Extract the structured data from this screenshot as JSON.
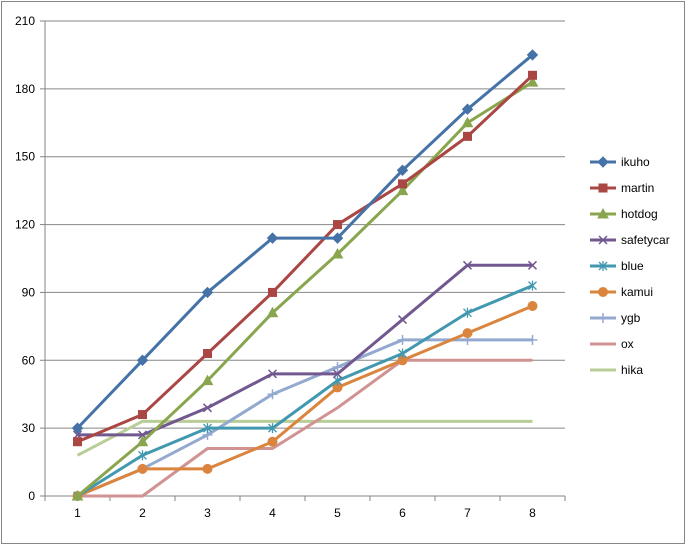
{
  "chart_data": {
    "type": "line",
    "title": "",
    "xlabel": "",
    "ylabel": "",
    "x": [
      1,
      2,
      3,
      4,
      5,
      6,
      7,
      8
    ],
    "ylim": [
      0,
      210
    ],
    "yticks": [
      0,
      30,
      60,
      90,
      120,
      150,
      180,
      210
    ],
    "grid": "horizontal",
    "legend": "right",
    "series": [
      {
        "name": "ikuho",
        "color": "#4572A7",
        "marker": "diamond",
        "values": [
          30,
          60,
          90,
          114,
          114,
          144,
          171,
          195
        ]
      },
      {
        "name": "martin",
        "color": "#AA4643",
        "marker": "square",
        "values": [
          24,
          36,
          63,
          90,
          120,
          138,
          159,
          186
        ]
      },
      {
        "name": "hotdog",
        "color": "#89A54E",
        "marker": "triangle",
        "values": [
          0,
          24,
          51,
          81,
          107,
          135,
          165,
          183
        ]
      },
      {
        "name": "safetycar",
        "color": "#71588F",
        "marker": "x",
        "values": [
          27,
          27,
          39,
          54,
          54,
          78,
          102,
          102
        ]
      },
      {
        "name": "blue",
        "color": "#4198AF",
        "marker": "asterisk",
        "values": [
          0,
          18,
          30,
          30,
          51,
          63,
          81,
          93
        ]
      },
      {
        "name": "kamui",
        "color": "#DB843D",
        "marker": "circle",
        "values": [
          0,
          12,
          12,
          24,
          48,
          60,
          72,
          84
        ]
      },
      {
        "name": "ygb",
        "color": "#93A9CF",
        "marker": "plus",
        "values": [
          0,
          12,
          27,
          45,
          57,
          69,
          69,
          69
        ]
      },
      {
        "name": "ox",
        "color": "#D19392",
        "marker": "none",
        "values": [
          0,
          0,
          21,
          21,
          39,
          60,
          60,
          60
        ]
      },
      {
        "name": "hika",
        "color": "#B9CD96",
        "marker": "none",
        "values": [
          18,
          33,
          33,
          33,
          33,
          33,
          33,
          33
        ]
      }
    ]
  }
}
